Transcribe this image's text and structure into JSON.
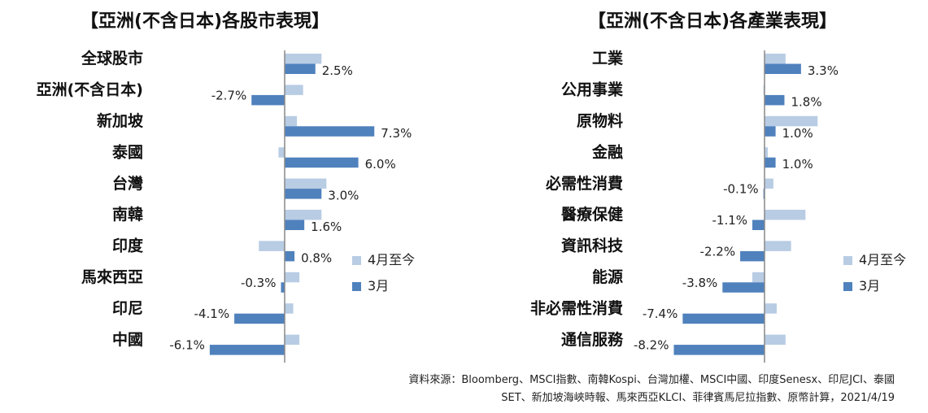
{
  "colors": {
    "ytd": "#b8cce4",
    "march": "#4f81bd",
    "axis": "#888888"
  },
  "legend": {
    "ytd": "4月至今",
    "march": "3月"
  },
  "source": {
    "line1": "資料來源：Bloomberg、MSCI指數、南韓Kospi、台灣加權、MSCI中國、印度Senesx、印尼JCI、泰國",
    "line2": "SET、新加坡海峽時報、馬來西亞KLCI、菲律賓馬尼拉指數、原幣計算，2021/4/19"
  },
  "chart_data": [
    {
      "type": "bar",
      "orientation": "horizontal",
      "title": "【亞洲(不含日本)各股市表現】",
      "categories": [
        "全球股市",
        "亞洲(不含日本)",
        "新加坡",
        "泰國",
        "台灣",
        "南韓",
        "印度",
        "馬來西亞",
        "印尼",
        "中國"
      ],
      "series": [
        {
          "name": "4月至今",
          "values": [
            3.0,
            1.5,
            1.0,
            -0.5,
            3.4,
            3.0,
            -2.1,
            1.2,
            0.7,
            1.2
          ]
        },
        {
          "name": "3月",
          "values": [
            2.5,
            -2.7,
            7.3,
            6.0,
            3.0,
            1.6,
            0.8,
            -0.3,
            -4.1,
            -6.1
          ]
        }
      ],
      "data_labels": [
        "2.5%",
        "-2.7%",
        "7.3%",
        "6.0%",
        "3.0%",
        "1.6%",
        "0.8%",
        "-0.3%",
        "-4.1%",
        "-6.1%"
      ],
      "xlim": [
        -6.1,
        7.3
      ],
      "legend_position": "right",
      "grid": false
    },
    {
      "type": "bar",
      "orientation": "horizontal",
      "title": "【亞洲(不含日本)各產業表現】",
      "categories": [
        "工業",
        "公用事業",
        "原物料",
        "金融",
        "必需性消費",
        "醫療保健",
        "資訊科技",
        "能源",
        "非必需性消費",
        "通信服務"
      ],
      "series": [
        {
          "name": "4月至今",
          "values": [
            1.9,
            -0.1,
            4.8,
            0.3,
            0.8,
            3.7,
            2.4,
            -1.1,
            1.1,
            1.9
          ]
        },
        {
          "name": "3月",
          "values": [
            3.3,
            1.8,
            1.0,
            1.0,
            -0.1,
            -1.1,
            -2.2,
            -3.8,
            -7.4,
            -8.2
          ]
        }
      ],
      "data_labels": [
        "3.3%",
        "1.8%",
        "1.0%",
        "1.0%",
        "-0.1%",
        "-1.1%",
        "-2.2%",
        "-3.8%",
        "-7.4%",
        "-8.2%"
      ],
      "xlim": [
        -8.2,
        4.8
      ],
      "legend_position": "right",
      "grid": false
    }
  ]
}
